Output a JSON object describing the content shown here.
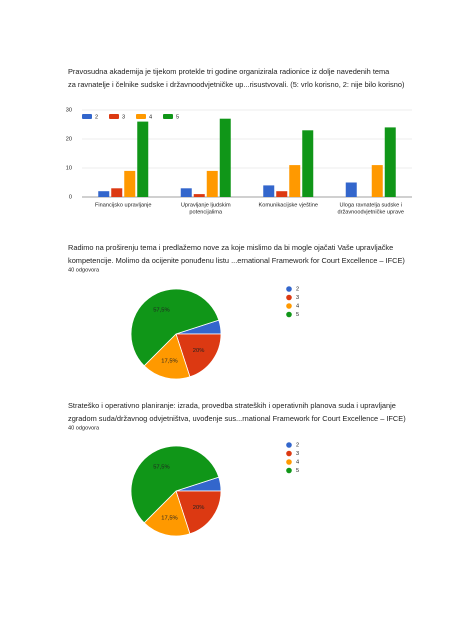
{
  "chart_data": [
    {
      "type": "bar",
      "title": [
        "Pravosudna akademija je tijekom protekle tri godine organizirala radionice iz dolje navedenih tema",
        "za ravnatelje i čelnike sudske i državnoodvjetničke up...risustvovali. (5: vrlo korisno, 2: nije bilo korisno)"
      ],
      "categories": [
        [
          "Financijsko upravljanje"
        ],
        [
          "Upravljanje ljudskim",
          "potencijalima"
        ],
        [
          "Komunikacijske vještine"
        ],
        [
          "Uloga ravnatelja sudske i",
          "državnoodvjetničke uprave"
        ]
      ],
      "series": [
        {
          "name": "2",
          "color": "#3366cc",
          "values": [
            2,
            3,
            4,
            5
          ]
        },
        {
          "name": "3",
          "color": "#dc3912",
          "values": [
            3,
            1,
            2,
            0
          ]
        },
        {
          "name": "4",
          "color": "#ff9900",
          "values": [
            9,
            9,
            11,
            11
          ]
        },
        {
          "name": "5",
          "color": "#109618",
          "values": [
            26,
            27,
            23,
            24
          ]
        }
      ],
      "ylim": [
        0,
        30
      ],
      "yticks": [
        0,
        10,
        20,
        30
      ],
      "grid": true,
      "legend": "top"
    },
    {
      "type": "pie",
      "title": [
        "Radimo na proširenju tema i predlažemo nove za koje mislimo da bi mogle ojačati Vaše upravljačke",
        "kompetencije. Molimo da ocijenite ponuđenu listu ...ernational Framework for Court Excellence – IFCE)"
      ],
      "subtitle": "40 odgovora",
      "categories": [
        "2",
        "3",
        "4",
        "5"
      ],
      "values": [
        5,
        20,
        17.5,
        57.5
      ],
      "value_labels": [
        null,
        "20%",
        "17,5%",
        "57,5%"
      ],
      "colors": [
        "#3366cc",
        "#dc3912",
        "#ff9900",
        "#109618"
      ],
      "legend": "right"
    },
    {
      "type": "pie",
      "title": [
        "Strateško i operativno planiranje: izrada, provedba strateških i operativnih planova suda i upravljanje",
        "zgradom suda/državnog odvjetništva, uvođenje sus...rnational Framework for Court Excellence – IFCE)"
      ],
      "subtitle": "40 odgovora",
      "categories": [
        "2",
        "3",
        "4",
        "5"
      ],
      "values": [
        5,
        20,
        17.5,
        57.5
      ],
      "value_labels": [
        null,
        "20%",
        "17,5%",
        "57,5%"
      ],
      "colors": [
        "#3366cc",
        "#dc3912",
        "#ff9900",
        "#109618"
      ],
      "legend": "right"
    }
  ]
}
